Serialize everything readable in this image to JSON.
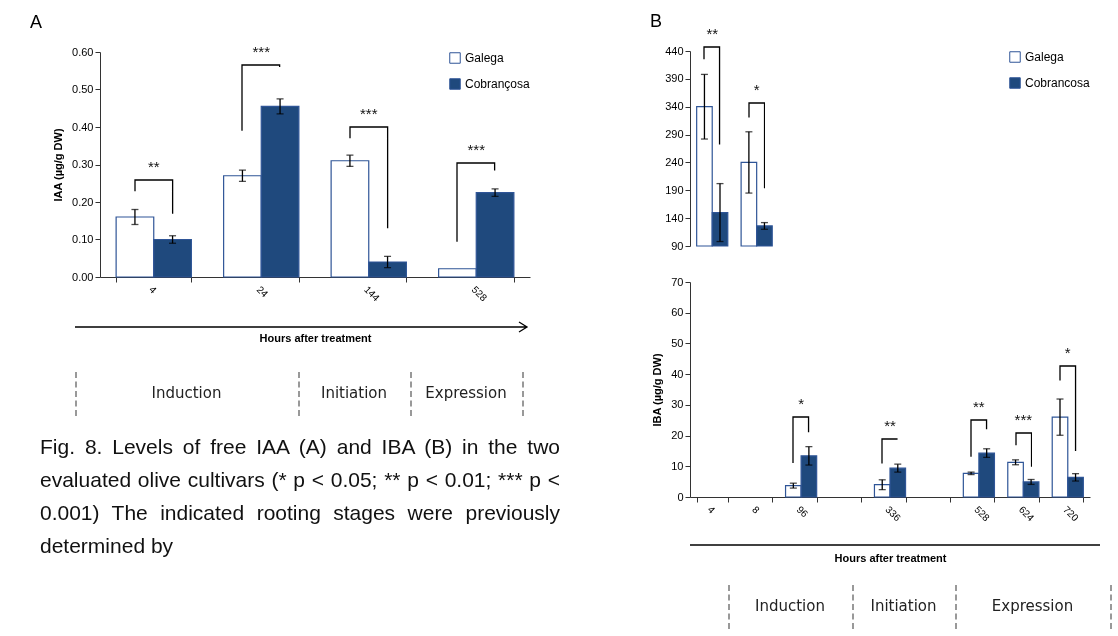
{
  "chart_data": [
    {
      "type": "bar",
      "title": "A",
      "xlabel": "Hours after treatment",
      "ylabel": "IAA (µg/g DW)",
      "categories": [
        "4",
        "24",
        "144",
        "528"
      ],
      "series": [
        {
          "name": "Galega",
          "color": "#ffffff",
          "values": [
            0.16,
            0.27,
            0.31,
            0.022
          ],
          "errors": [
            0.02,
            0.015,
            0.015,
            null
          ]
        },
        {
          "name": "Cobrançosa",
          "color": "#1f497d",
          "values": [
            0.1,
            0.455,
            0.04,
            0.225
          ],
          "errors": [
            0.01,
            0.02,
            0.015,
            0.01
          ]
        }
      ],
      "ylim": [
        0,
        0.6
      ],
      "yticks": [
        {
          "value": 0,
          "label": "0.00"
        },
        {
          "value": 0.1,
          "label": "0.10"
        },
        {
          "value": 0.2,
          "label": "0.20"
        },
        {
          "value": 0.3,
          "label": "0.30"
        },
        {
          "value": 0.4,
          "label": "0.40"
        },
        {
          "value": 0.5,
          "label": "0.50"
        },
        {
          "value": 0.6,
          "label": "0.60"
        }
      ],
      "legend": "top right",
      "annotations": [
        "**",
        "***",
        "***",
        "***",
        "Induction",
        "Initiation",
        "Expression",
        "Fig. 8. Levels of free IAA (A) and IBA (B) in the two evaluated olive cultivars (* p < 0.05; ** p < 0.01; *** p < 0.001) The indicated rooting stages were previously determined by"
      ]
    },
    {
      "type": "bar",
      "title": "B",
      "categories": [
        "4",
        "8",
        "96",
        null,
        "336",
        null,
        "528",
        "624",
        "720"
      ],
      "series": [
        {
          "name": "Galega",
          "color": "#ffffff",
          "values": [
            340,
            240,
            null,
            null,
            null,
            null,
            null,
            null,
            null
          ],
          "errors": [
            58,
            55,
            null,
            null,
            null,
            null,
            null,
            null,
            null
          ]
        },
        {
          "name": "Cobrancosa",
          "color": "#1f497d",
          "values": [
            150,
            126,
            null,
            null,
            null,
            null,
            null,
            null,
            null
          ],
          "errors": [
            52,
            6,
            null,
            null,
            null,
            null,
            null,
            null,
            null
          ]
        }
      ],
      "ylim": [
        90,
        440
      ],
      "yticks": [
        90,
        140,
        190,
        240,
        290,
        340,
        390,
        440
      ],
      "tick_labels": "y",
      "legend": "top right",
      "annotations": [
        "**",
        "*"
      ]
    },
    {
      "type": "bar",
      "xlabel": "Hours after treatment",
      "ylabel": "IBA (µg/g DW)",
      "categories": [
        "4",
        "8",
        "96",
        null,
        "336",
        null,
        "528",
        "624",
        "720"
      ],
      "series": [
        {
          "color": "#ffffff",
          "values": [
            null,
            null,
            3.7,
            null,
            4,
            null,
            7.7,
            11.3,
            26
          ],
          "errors": [
            null,
            null,
            0.8,
            null,
            1.6,
            null,
            0.4,
            0.8,
            5.9
          ]
        },
        {
          "color": "#1f497d",
          "values": [
            null,
            null,
            13.4,
            null,
            9.4,
            null,
            14.3,
            4.9,
            6.4
          ],
          "errors": [
            null,
            null,
            3,
            null,
            1.3,
            null,
            1.4,
            0.8,
            1.2
          ]
        }
      ],
      "ylim": [
        0,
        70
      ],
      "yticks": [
        0,
        10,
        20,
        30,
        40,
        50,
        60,
        70
      ],
      "annotations": [
        "*",
        "**",
        "**",
        "***",
        "*",
        "Induction",
        "Initiation",
        "Expression"
      ]
    }
  ]
}
